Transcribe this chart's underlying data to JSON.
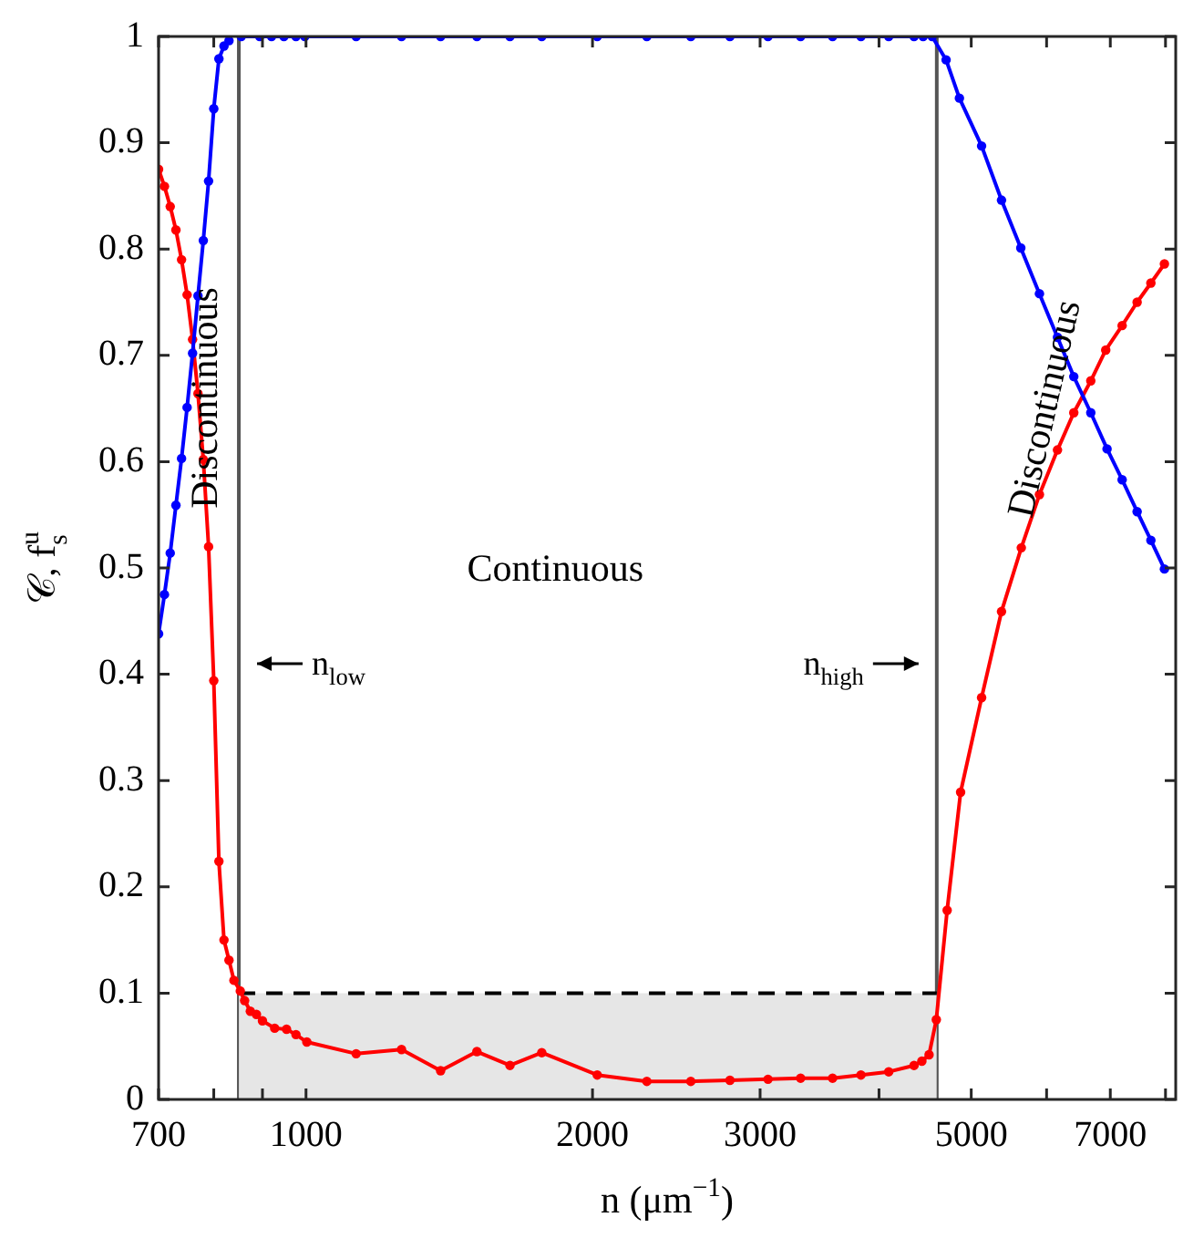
{
  "chart_data": {
    "type": "line",
    "xlabel": "n (μm$^{−1}$)",
    "ylabel": "𝒞, f$_{s}$$^{u}$",
    "log": "x",
    "xlim": [
      700,
      8200
    ],
    "ylim": [
      0,
      1
    ],
    "xticks": [
      700,
      {
        "value": 800,
        "label": null
      },
      {
        "value": 900,
        "label": null
      },
      1000,
      2000,
      3000,
      {
        "value": 4000,
        "label": null
      },
      5000,
      {
        "value": 6000,
        "label": null
      },
      7000,
      {
        "value": 8000,
        "label": null
      }
    ],
    "yticks": [
      0,
      0.1,
      0.2,
      0.3,
      0.4,
      0.5,
      0.6,
      0.7,
      0.8,
      0.9,
      1
    ],
    "grid": false,
    "legend": false,
    "marker": "circle",
    "line_style": "solid",
    "series": [
      {
        "color": "#0000ff",
        "x": [
          700,
          710,
          720,
          730,
          740,
          750,
          760,
          770,
          780,
          790,
          800,
          810,
          820,
          830,
          840,
          855,
          894,
          920,
          948,
          976,
          997,
          1129,
          1260,
          1385,
          1512,
          1638,
          1769,
          2023,
          2281,
          2537,
          2789,
          3058,
          3309,
          3575,
          3829,
          4095,
          4354,
          4451,
          4549,
          4705,
          4859,
          5127,
          5380,
          5637,
          5897,
          6160,
          6408,
          6677,
          6945,
          7203,
          7469,
          7722,
          7979
        ],
        "values": [
          0.438,
          0.475,
          0.514,
          0.559,
          0.603,
          0.651,
          0.702,
          0.756,
          0.808,
          0.864,
          0.932,
          0.979,
          0.991,
          0.996,
          null,
          1,
          1,
          1,
          1,
          1,
          1,
          1,
          1,
          1,
          1,
          1,
          1,
          1,
          1,
          1,
          1,
          1,
          1,
          1,
          1,
          1,
          1,
          1,
          1,
          0.978,
          0.942,
          0.897,
          0.846,
          0.801,
          0.758,
          0.717,
          0.68,
          0.646,
          0.612,
          0.583,
          0.553,
          0.526,
          0.499
        ]
      },
      {
        "color": "#ff0000",
        "x": [
          700,
          710,
          720,
          730,
          740,
          750,
          760,
          770,
          780,
          790,
          800,
          810,
          820,
          830,
          840,
          853,
          862,
          874,
          887,
          900,
          927,
          954,
          976,
          1002,
          1129,
          1260,
          1385,
          1512,
          1638,
          1769,
          2023,
          2281,
          2537,
          2789,
          3058,
          3309,
          3575,
          3829,
          4095,
          4354,
          4437,
          4515,
          4595,
          4717,
          4873,
          5127,
          5380,
          5644,
          5897,
          6160,
          6408,
          6677,
          6923,
          7203,
          7469,
          7722,
          7979
        ],
        "values": [
          0.875,
          0.859,
          0.84,
          0.818,
          0.79,
          0.757,
          0.715,
          0.664,
          0.602,
          0.52,
          0.394,
          0.224,
          0.15,
          0.131,
          0.112,
          0.102,
          0.093,
          0.083,
          0.08,
          0.074,
          0.067,
          0.066,
          0.061,
          0.054,
          0.043,
          0.047,
          0.027,
          0.045,
          0.032,
          0.044,
          0.023,
          0.017,
          0.017,
          0.018,
          0.019,
          0.02,
          0.02,
          0.023,
          0.026,
          0.032,
          0.036,
          0.042,
          0.075,
          0.178,
          0.289,
          0.378,
          0.459,
          0.519,
          0.569,
          0.611,
          0.646,
          0.676,
          0.705,
          0.728,
          0.75,
          0.768,
          0.786
        ]
      },
      {
        "type": "area",
        "color": "#e6e6e6",
        "line_style": "dashed",
        "marker": "none",
        "x": [
          850,
          4600
        ],
        "values": [
          0.1,
          0.1
        ]
      }
    ],
    "ref_lines": [
      {
        "axis": "x",
        "value": 850,
        "label": "n$_{low}$",
        "color": "#555555"
      },
      {
        "axis": "x",
        "value": 4600,
        "label": "n$_{high}$",
        "color": "#555555"
      }
    ],
    "annotations": [
      "Continuous",
      "Discontinuous",
      "Discontinuous"
    ]
  }
}
